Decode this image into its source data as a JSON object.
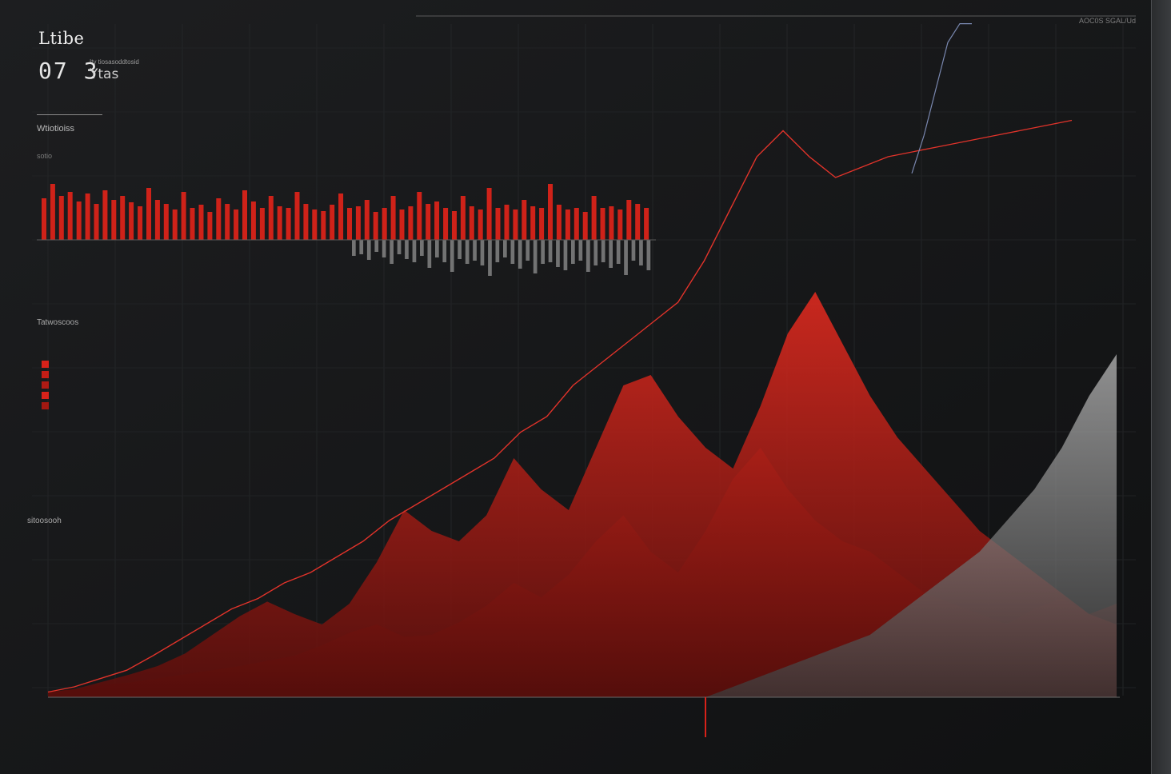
{
  "header": {
    "title": "Ltibe",
    "value": "07 3",
    "unit": "Ytas",
    "caption": "Ity tiosasoddtosid",
    "corner_label": "AOC0S SGAL/Ud"
  },
  "sections": {
    "top_chart_title": "Wtiotioiss",
    "top_chart_sub": "sotio",
    "legend_title": "Tatwoscoos",
    "left_label": "sitoosooh"
  },
  "colors": {
    "background": "#151617",
    "red": "#d8221a",
    "dark_red": "#6e120e",
    "grey": "#9a9a9a",
    "line": "#e0332a",
    "blue_line": "#7a88b0"
  },
  "chart_data": [
    {
      "type": "bar",
      "title": "Wtiotioiss",
      "series": [
        {
          "name": "red",
          "values": [
            52,
            70,
            55,
            60,
            48,
            58,
            45,
            62,
            50,
            55,
            47,
            42,
            65,
            50,
            45,
            38,
            60,
            40,
            44,
            35,
            52,
            45,
            38,
            62,
            48,
            40,
            55,
            42,
            40,
            60,
            45,
            38,
            36,
            44,
            58,
            40,
            42,
            50,
            35,
            40,
            55,
            38,
            42,
            60,
            45,
            48,
            40,
            36,
            55,
            42,
            38,
            65,
            40,
            44,
            38,
            50,
            42,
            40,
            70,
            44,
            38,
            40,
            35,
            55,
            40,
            42,
            38,
            50,
            45,
            40
          ]
        },
        {
          "name": "grey",
          "values": [
            20,
            18,
            25,
            15,
            22,
            30,
            18,
            24,
            28,
            20,
            35,
            22,
            28,
            40,
            24,
            30,
            26,
            32,
            45,
            28,
            22,
            30,
            36,
            26,
            42,
            30,
            28,
            34,
            38,
            30,
            26,
            40,
            32,
            28,
            35,
            30,
            44,
            26,
            32,
            38
          ]
        }
      ],
      "ylim": [
        0,
        100
      ]
    },
    {
      "type": "area",
      "series": [
        {
          "name": "back",
          "values": [
            5,
            8,
            12,
            14,
            18,
            22,
            26,
            30,
            35,
            40,
            50,
            62,
            70,
            58,
            60,
            72,
            88,
            110,
            96,
            118,
            150,
            175,
            140,
            120,
            160,
            210,
            240,
            200,
            170,
            150,
            140,
            120,
            100,
            90,
            80,
            70,
            85,
            95,
            80,
            90
          ]
        },
        {
          "name": "red",
          "values": [
            5,
            8,
            15,
            22,
            30,
            42,
            60,
            78,
            92,
            80,
            70,
            90,
            130,
            180,
            160,
            150,
            175,
            230,
            200,
            180,
            240,
            300,
            310,
            270,
            240,
            220,
            280,
            350,
            390,
            340,
            290,
            250,
            220,
            190,
            160,
            140,
            120,
            100,
            80,
            70
          ]
        },
        {
          "name": "grey",
          "values": [
            0,
            0,
            0,
            0,
            0,
            0,
            0,
            0,
            0,
            0,
            0,
            0,
            0,
            0,
            0,
            0,
            0,
            0,
            0,
            0,
            0,
            0,
            0,
            0,
            0,
            10,
            20,
            30,
            40,
            50,
            60,
            80,
            100,
            120,
            140,
            170,
            200,
            240,
            290,
            330
          ]
        }
      ]
    },
    {
      "type": "line",
      "series": [
        {
          "name": "red line",
          "values": [
            5,
            10,
            18,
            26,
            40,
            55,
            70,
            85,
            95,
            110,
            120,
            135,
            150,
            170,
            185,
            200,
            215,
            230,
            255,
            270,
            300,
            320,
            340,
            360,
            380,
            420,
            470,
            520,
            545,
            520,
            500,
            510,
            520,
            525,
            530,
            535,
            540,
            545,
            550,
            555
          ]
        },
        {
          "name": "blue line",
          "values": [
            560,
            600,
            650,
            700,
            720,
            720
          ]
        }
      ]
    }
  ]
}
